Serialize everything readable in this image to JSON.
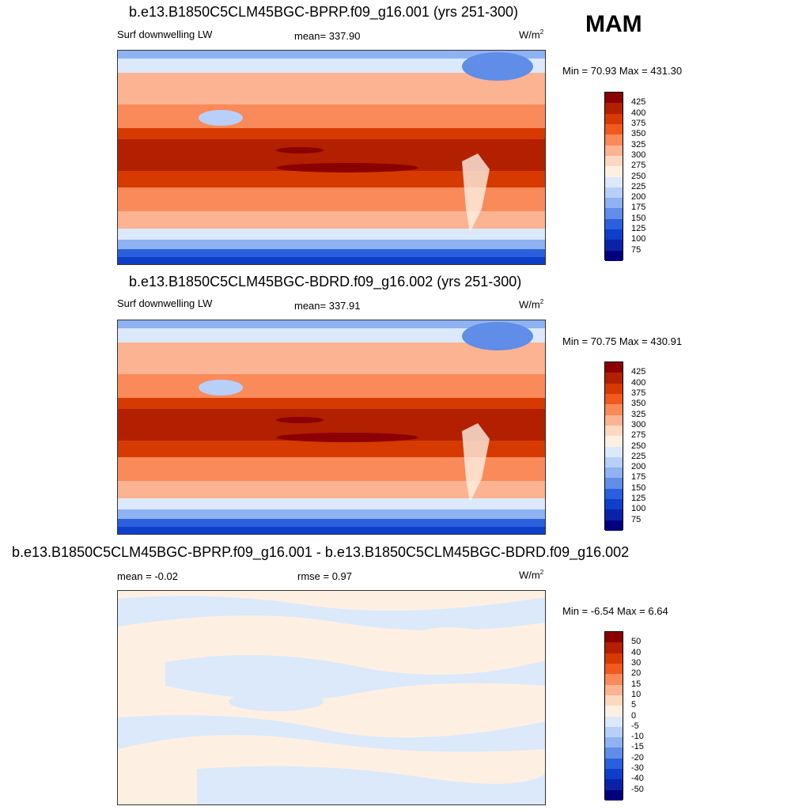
{
  "season": "MAM",
  "panels": [
    {
      "title": "b.e13.B1850C5CLM45BGC-BPRP.f09_g16.001 (yrs 251-300)",
      "variable": "Surf downwelling LW",
      "stat1": "mean= 337.90",
      "stat2": "",
      "units": "W/m",
      "units_sup": "2",
      "range": "Min =  70.93 Max = 431.30"
    },
    {
      "title": "b.e13.B1850C5CLM45BGC-BDRD.f09_g16.002 (yrs 251-300)",
      "variable": "Surf downwelling LW",
      "stat1": "mean= 337.91",
      "stat2": "",
      "units": "W/m",
      "units_sup": "2",
      "range": "Min =  70.75 Max = 430.91"
    },
    {
      "title": "b.e13.B1850C5CLM45BGC-BPRP.f09_g16.001 - b.e13.B1850C5CLM45BGC-BDRD.f09_g16.002",
      "variable": "mean =  -0.02",
      "stat1": "rmse =   0.97",
      "stat2": "",
      "units": "W/m",
      "units_sup": "2",
      "range": "Min =  -6.54 Max =   6.64"
    }
  ],
  "colorbar_abs": {
    "colors": [
      "#8b0000",
      "#b22000",
      "#d63a00",
      "#f05a1e",
      "#fa8a5a",
      "#fcb392",
      "#fdd8c0",
      "#fdf0e3",
      "#dbe9fb",
      "#b8d0f8",
      "#8fb2f2",
      "#5f8de8",
      "#2a5fdd",
      "#0d3fc9",
      "#0a22a8",
      "#00007d"
    ],
    "labels": [
      "425",
      "400",
      "375",
      "350",
      "325",
      "300",
      "275",
      "250",
      "225",
      "200",
      "175",
      "150",
      "125",
      "100",
      "75"
    ]
  },
  "colorbar_diff": {
    "colors": [
      "#8b0000",
      "#b22000",
      "#d63a00",
      "#f05a1e",
      "#fa8a5a",
      "#fcb392",
      "#fdd8c0",
      "#fdf0e3",
      "#dbe9fb",
      "#b8d0f8",
      "#8fb2f2",
      "#5f8de8",
      "#2a5fdd",
      "#0d3fc9",
      "#0a22a8",
      "#00007d"
    ],
    "labels": [
      "50",
      "40",
      "30",
      "20",
      "15",
      "10",
      "5",
      "0",
      "-5",
      "-10",
      "-15",
      "-20",
      "-30",
      "-40",
      "-50"
    ]
  }
}
